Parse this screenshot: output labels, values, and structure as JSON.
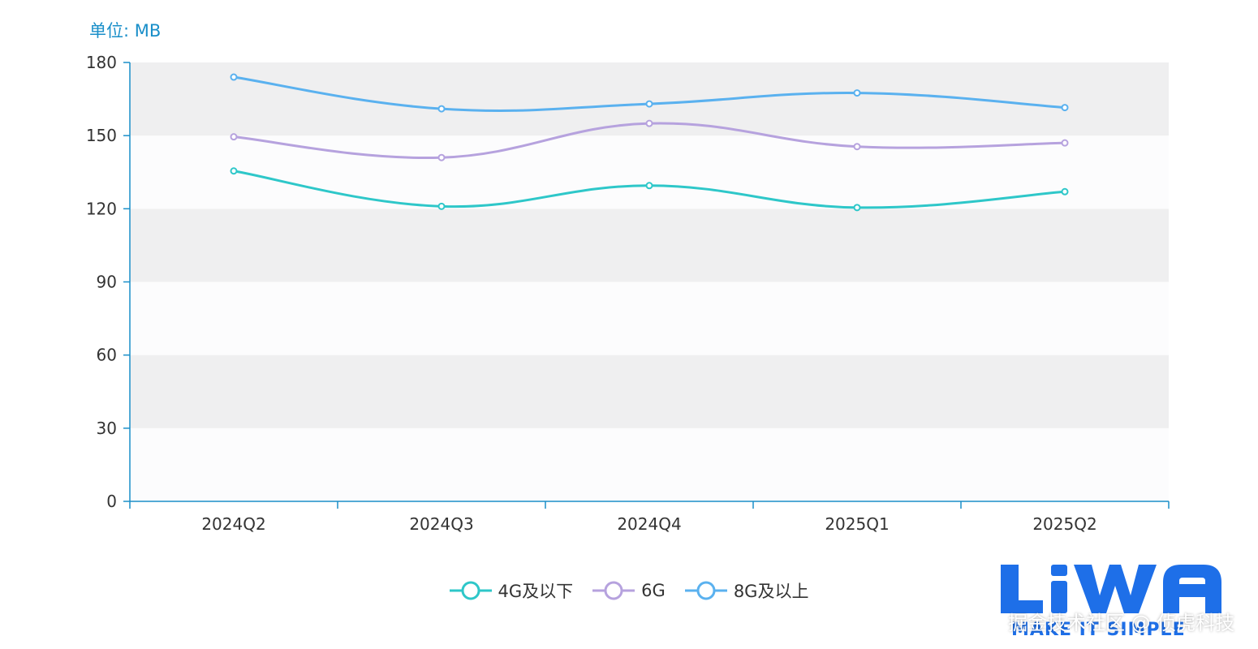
{
  "chart_data": {
    "type": "line",
    "unit_label": "单位: MB",
    "categories": [
      "2024Q2",
      "2024Q3",
      "2024Q4",
      "2025Q1",
      "2025Q2"
    ],
    "ylim": [
      0,
      180
    ],
    "yticks": [
      0,
      30,
      60,
      90,
      120,
      150,
      180
    ],
    "smooth": true,
    "grid_bands": true,
    "legend_position": "bottom-center",
    "series": [
      {
        "name": "4G及以下",
        "color": "#2ec7c9",
        "values": [
          135.5,
          121,
          129.5,
          120.5,
          127
        ]
      },
      {
        "name": "6G",
        "color": "#b6a2de",
        "values": [
          149.5,
          141,
          155,
          145.5,
          147
        ]
      },
      {
        "name": "8G及以上",
        "color": "#5ab1ef",
        "values": [
          174,
          161,
          163,
          167.5,
          161.5
        ]
      }
    ]
  },
  "watermark": {
    "logo_text": "LiWA",
    "slogan": "MAKE IT SIMPLE",
    "credit": "掘金技术社区 @ 侦虎科技",
    "color": "#1e6fe8"
  }
}
